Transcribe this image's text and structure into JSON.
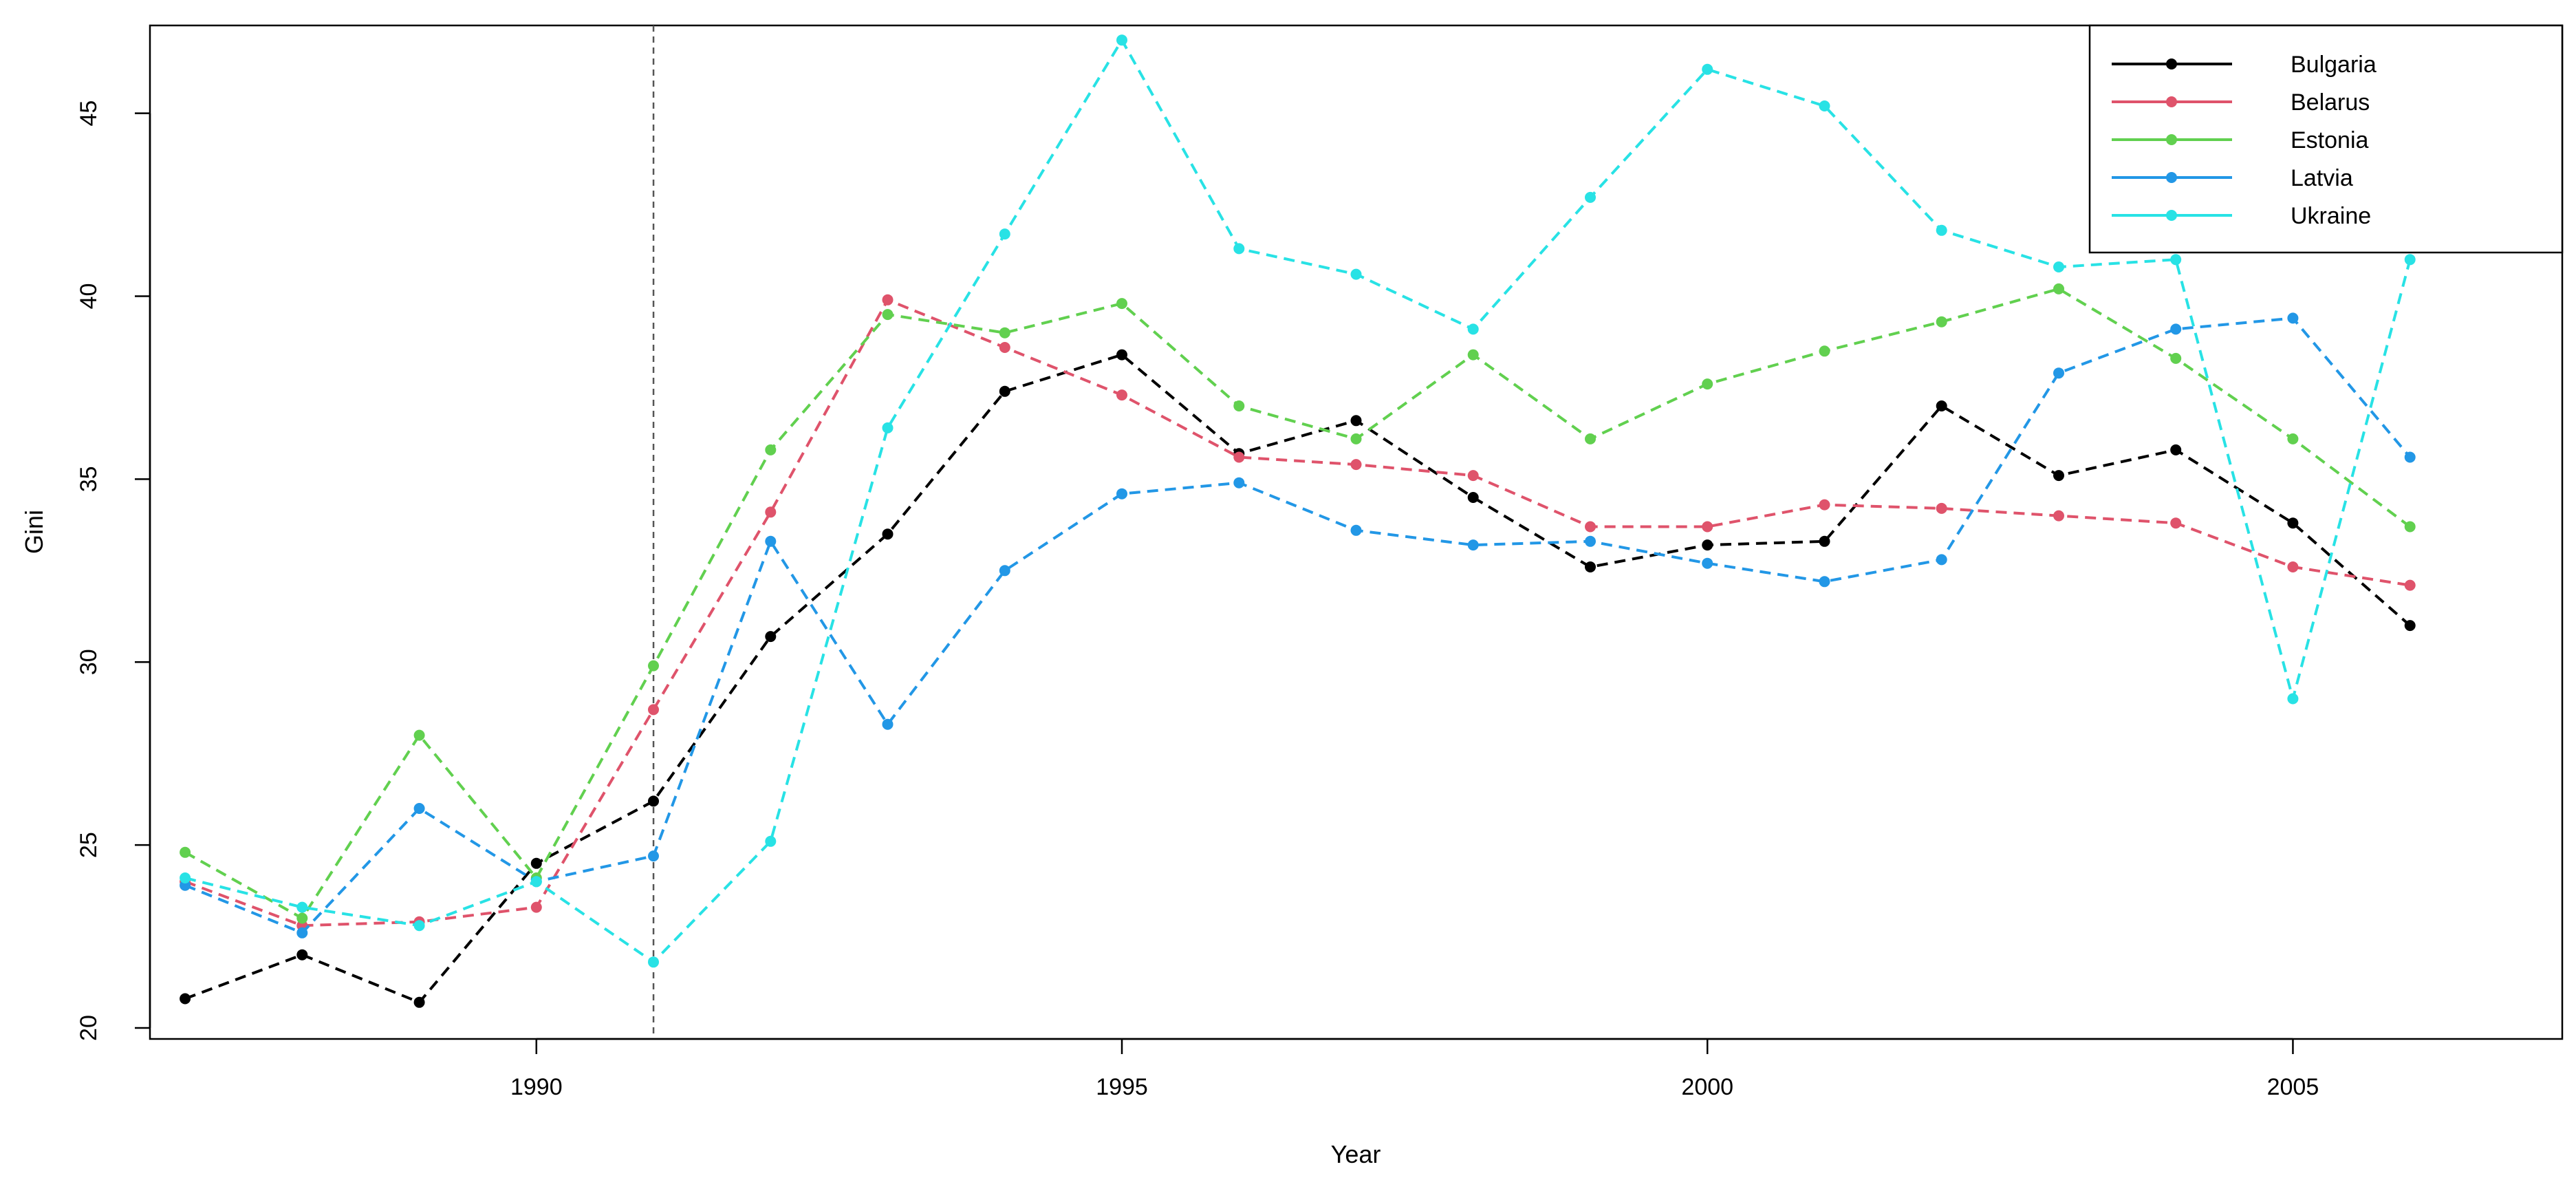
{
  "chart_data": {
    "type": "line",
    "title": "",
    "xlabel": "Year",
    "ylabel": "Gini",
    "xlim": [
      1986.7,
      2007.3
    ],
    "ylim": [
      19.7,
      47.4
    ],
    "x_ticks": [
      1990,
      1995,
      2000,
      2005
    ],
    "y_ticks": [
      20,
      25,
      30,
      35,
      40,
      45
    ],
    "grid": false,
    "legend_position": "top-right",
    "reference_line": {
      "x": 1991,
      "style": "dashed",
      "color": "#555555"
    },
    "x": [
      1987,
      1988,
      1989,
      1990,
      1991,
      1992,
      1993,
      1994,
      1995,
      1996,
      1997,
      1998,
      1999,
      2000,
      2001,
      2002,
      2003,
      2004,
      2005,
      2006
    ],
    "series": [
      {
        "name": "Bulgaria",
        "color": "#000000",
        "values": [
          20.8,
          22.0,
          20.7,
          24.5,
          26.2,
          30.7,
          33.5,
          37.4,
          38.4,
          35.7,
          36.6,
          34.5,
          32.6,
          33.2,
          33.3,
          37.0,
          35.1,
          35.8,
          33.8,
          31.0
        ]
      },
      {
        "name": "Belarus",
        "color": "#DF536B",
        "values": [
          24.0,
          22.8,
          22.9,
          23.3,
          28.7,
          34.1,
          39.9,
          38.6,
          37.3,
          35.6,
          35.4,
          35.1,
          33.7,
          33.7,
          34.3,
          34.2,
          34.0,
          33.8,
          32.6,
          32.1
        ]
      },
      {
        "name": "Estonia",
        "color": "#61D04F",
        "values": [
          24.8,
          23.0,
          28.0,
          24.1,
          29.9,
          35.8,
          39.5,
          39.0,
          39.8,
          37.0,
          36.1,
          38.4,
          36.1,
          37.6,
          38.5,
          39.3,
          40.2,
          38.3,
          36.1,
          33.7
        ]
      },
      {
        "name": "Latvia",
        "color": "#2297E6",
        "values": [
          23.9,
          22.6,
          26.0,
          24.0,
          24.7,
          33.3,
          28.3,
          32.5,
          34.6,
          34.9,
          33.6,
          33.2,
          33.3,
          32.7,
          32.2,
          32.8,
          37.9,
          39.1,
          39.4,
          35.6
        ]
      },
      {
        "name": "Ukraine",
        "color": "#28E2E5",
        "values": [
          24.1,
          23.3,
          22.8,
          24.0,
          21.8,
          25.1,
          36.4,
          41.7,
          47.0,
          41.3,
          40.6,
          39.1,
          42.7,
          46.2,
          45.2,
          41.8,
          40.8,
          41.0,
          29.0,
          41.0
        ]
      }
    ]
  }
}
